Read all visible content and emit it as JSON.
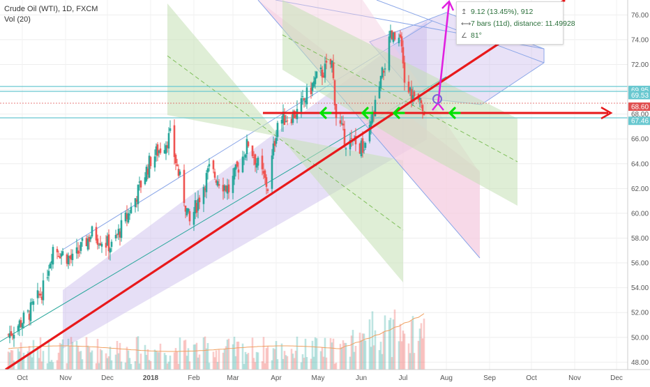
{
  "legend": {
    "symbol_line": "Crude Oil (WTI), 1D, FXCM",
    "indicator": "Vol (20)"
  },
  "tooltip": {
    "price_change": "9.12 (13.45%), 912",
    "bars_distance": "7 bars (11d), distance: 11.49928",
    "angle": "81°",
    "icons": [
      "price-range-icon",
      "bar-range-icon",
      "angle-icon"
    ]
  },
  "colors": {
    "up": "#26a69a",
    "down": "#ef5350",
    "trendline": "#e8191b",
    "arrow_green": "#00e000",
    "arrow_magenta": "#e020e0",
    "channel_purple": "#c8b7ec",
    "channel_green": "#c5e0b5",
    "channel_pink": "#f5cde0",
    "level_cyan": "#69c8d0",
    "ma": "#f0a060"
  },
  "chart_data": {
    "type": "candlestick",
    "ylim": [
      47.4,
      77.2
    ],
    "y_ticks": [
      "76.00",
      "74.00",
      "72.00",
      "70.00",
      "68.00",
      "66.00",
      "64.00",
      "62.00",
      "60.00",
      "58.00",
      "56.00",
      "54.00",
      "52.00",
      "50.00",
      "48.00"
    ],
    "x_ticks": [
      "Oct",
      "Nov",
      "Dec",
      "2018",
      "Feb",
      "Mar",
      "Apr",
      "May",
      "Jun",
      "Jul",
      "Aug",
      "Sep",
      "Oct",
      "Nov",
      "Dec"
    ],
    "price_tags": [
      {
        "label": "69.95",
        "value": 69.95,
        "color": "#69c8d0"
      },
      {
        "label": "69.53",
        "value": 69.53,
        "color": "#69c8d0"
      },
      {
        "label": "68.60",
        "value": 68.6,
        "color": "#e05050"
      },
      {
        "label": "67.46",
        "value": 67.46,
        "color": "#69c8d0"
      }
    ],
    "price_path": [
      {
        "date": "2017-10-02",
        "close": 50.2
      },
      {
        "date": "2017-10-16",
        "close": 51.8
      },
      {
        "date": "2017-10-27",
        "close": 53.9
      },
      {
        "date": "2017-11-03",
        "close": 57.3
      },
      {
        "date": "2017-11-17",
        "close": 56.2
      },
      {
        "date": "2017-12-01",
        "close": 58.4
      },
      {
        "date": "2017-12-15",
        "close": 57.3
      },
      {
        "date": "2017-12-29",
        "close": 60.4
      },
      {
        "date": "2018-01-12",
        "close": 64.3
      },
      {
        "date": "2018-01-26",
        "close": 66.2
      },
      {
        "date": "2018-02-09",
        "close": 59.2
      },
      {
        "date": "2018-02-23",
        "close": 63.5
      },
      {
        "date": "2018-03-09",
        "close": 61.9
      },
      {
        "date": "2018-03-23",
        "close": 65.7
      },
      {
        "date": "2018-04-06",
        "close": 62.1
      },
      {
        "date": "2018-04-13",
        "close": 67.4
      },
      {
        "date": "2018-04-27",
        "close": 68.1
      },
      {
        "date": "2018-05-11",
        "close": 70.9
      },
      {
        "date": "2018-05-22",
        "close": 72.1
      },
      {
        "date": "2018-05-25",
        "close": 67.9
      },
      {
        "date": "2018-06-01",
        "close": 65.8
      },
      {
        "date": "2018-06-15",
        "close": 65.1
      },
      {
        "date": "2018-06-22",
        "close": 68.6
      },
      {
        "date": "2018-07-03",
        "close": 74.1
      },
      {
        "date": "2018-07-10",
        "close": 73.9
      },
      {
        "date": "2018-07-13",
        "close": 70.6
      },
      {
        "date": "2018-07-20",
        "close": 69.1
      },
      {
        "date": "2018-07-27",
        "close": 68.6
      }
    ]
  }
}
